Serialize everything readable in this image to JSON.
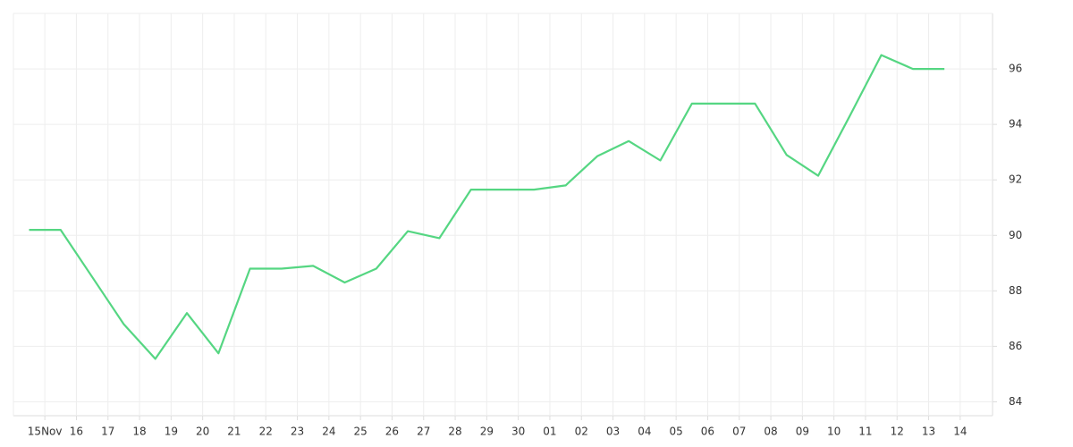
{
  "chart_data": {
    "type": "line",
    "categories": [
      "15Nov",
      "16",
      "17",
      "18",
      "19",
      "20",
      "21",
      "22",
      "23",
      "24",
      "25",
      "26",
      "27",
      "28",
      "29",
      "30",
      "01",
      "02",
      "03",
      "04",
      "05",
      "06",
      "07",
      "08",
      "09",
      "10",
      "11",
      "12",
      "13",
      "14"
    ],
    "values": [
      90.2,
      90.2,
      88.5,
      86.8,
      85.55,
      87.2,
      85.75,
      88.8,
      88.8,
      88.9,
      88.3,
      88.8,
      90.15,
      89.9,
      91.65,
      91.65,
      91.65,
      91.8,
      92.85,
      93.4,
      92.7,
      94.75,
      94.75,
      94.75,
      92.9,
      92.15,
      94.3,
      96.5,
      96,
      96
    ],
    "color": "#55d682",
    "ylim": [
      83.5,
      98
    ],
    "yticks": [
      84,
      86,
      88,
      90,
      92,
      94,
      96
    ],
    "grid": true
  }
}
